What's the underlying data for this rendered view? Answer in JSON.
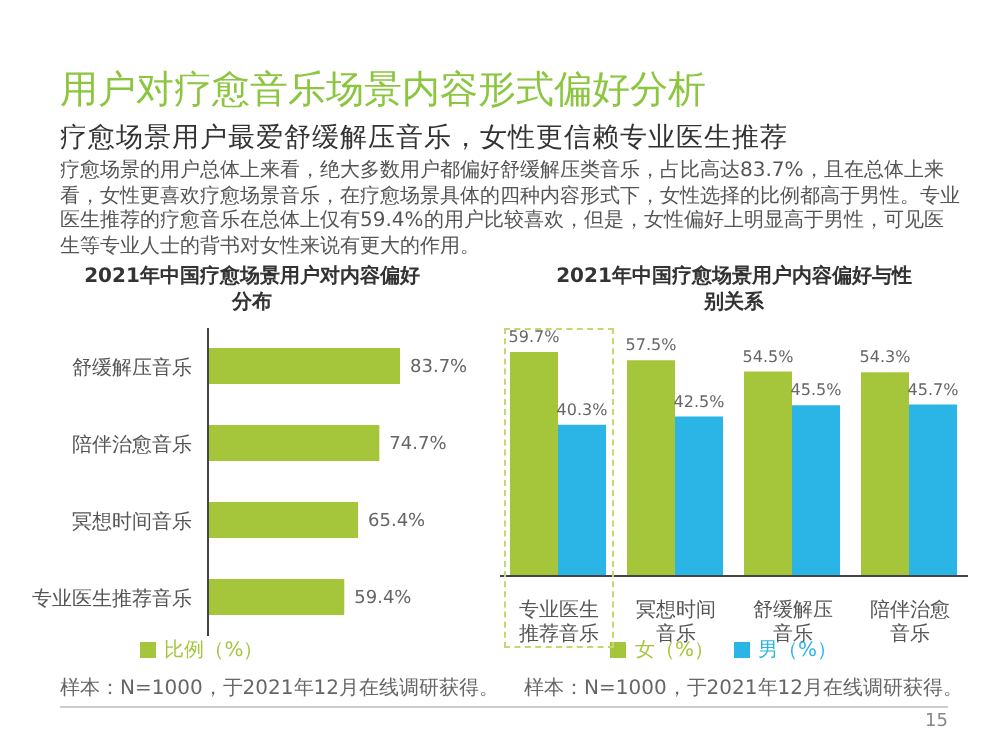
{
  "chart_data": [
    {
      "type": "bar",
      "orientation": "horizontal",
      "title": "2021年中国疗愈场景用户对内容偏好分布",
      "categories": [
        "舒缓解压音乐",
        "陪伴治愈音乐",
        "冥想时间音乐",
        "专业医生推荐音乐"
      ],
      "series": [
        {
          "name": "比例（%）",
          "color": "#a5c63b",
          "values": [
            83.7,
            74.7,
            65.4,
            59.4
          ],
          "value_labels": [
            "83.7%",
            "74.7%",
            "65.4%",
            "59.4%"
          ]
        }
      ],
      "legend": "bottom",
      "annotations": [
        "用户对疗愈音乐场景内容形式偏好分析",
        "疗愈场景用户最爱舒缓解压音乐，女性更信赖专业医生推荐",
        "疗愈场景的用户总体上来看，绝大多数用户都偏好舒缓解压类音乐，占比高达83.7%，且在总体上来看，女性更喜欢疗愈场景音乐，在疗愈场景具体的四种内容形式下，女性选择的比例都高于男性。专业医生推荐的疗愈音乐在总体上仅有59.4%的用户比较喜欢，但是，女性偏好上明显高于男性，可见医生等专业人士的背书对女性来说有更大的作用。",
        "样本：N=1000，于2021年12月在线调研获得。"
      ]
    },
    {
      "type": "bar",
      "title": "2021年中国疗愈场景用户内容偏好与性别关系",
      "categories": [
        "专业医生推荐音乐",
        "冥想时间音乐",
        "舒缓解压音乐",
        "陪伴治愈音乐"
      ],
      "series": [
        {
          "name": "女（%）",
          "color": "#a5c63b",
          "values": [
            59.7,
            57.5,
            54.5,
            54.3
          ],
          "value_labels": [
            "59.7%",
            "57.5%",
            "54.5%",
            "54.3%"
          ]
        },
        {
          "name": "男（%）",
          "color": "#2bb5e6",
          "values": [
            40.3,
            42.5,
            45.5,
            45.7
          ],
          "value_labels": [
            "40.3%",
            "42.5%",
            "45.5%",
            "45.7%"
          ]
        }
      ],
      "legend": "bottom",
      "annotations": [
        "样本：N=1000，于2021年12月在线调研获得。",
        "15"
      ]
    }
  ]
}
